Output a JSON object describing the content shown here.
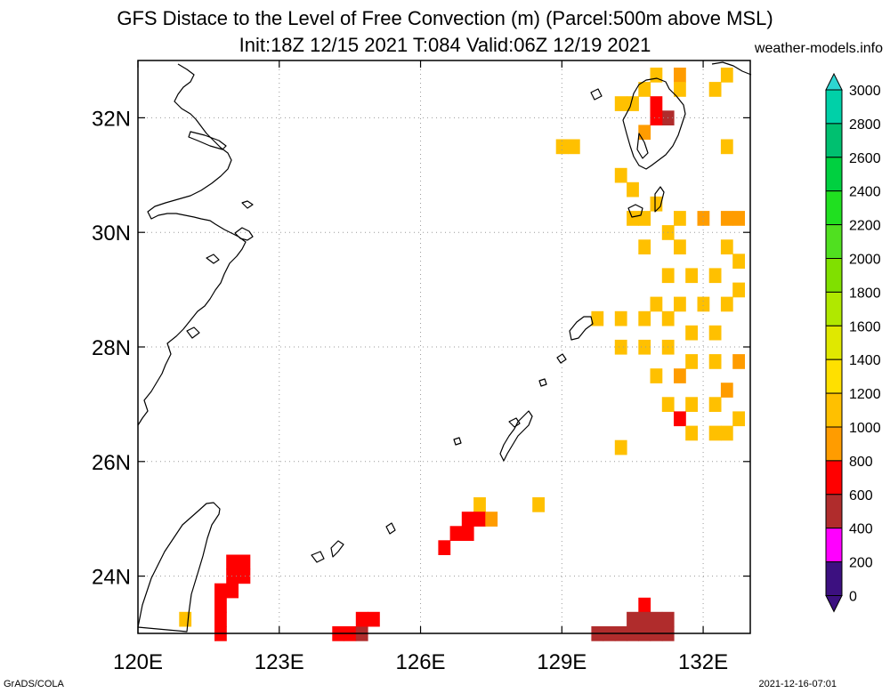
{
  "header": {
    "title_line1": "GFS Distace to the Level of Free Convection (m) (Parcel:500m above MSL)",
    "title_line2": "Init:18Z 12/15 2021 T:084 Valid:06Z 12/19 2021",
    "site": "weather-models.info"
  },
  "footer": {
    "left": "GrADS/COLA",
    "right": "2021-12-16-07:01"
  },
  "map": {
    "lon_range": [
      120,
      133
    ],
    "lat_range": [
      23,
      33
    ],
    "lon_ticks": [
      {
        "value": 120,
        "label": "120E"
      },
      {
        "value": 123,
        "label": "123E"
      },
      {
        "value": 126,
        "label": "126E"
      },
      {
        "value": 129,
        "label": "129E"
      },
      {
        "value": 132,
        "label": "132E"
      }
    ],
    "lat_ticks": [
      {
        "value": 24,
        "label": "24N"
      },
      {
        "value": 26,
        "label": "26N"
      },
      {
        "value": 28,
        "label": "28N"
      },
      {
        "value": 30,
        "label": "30N"
      },
      {
        "value": 32,
        "label": "32N"
      }
    ],
    "grid": true,
    "cells": [
      {
        "lon": 131.5,
        "lat": 32.75,
        "v": 700
      },
      {
        "lon": 131.0,
        "lat": 32.75,
        "v": 900
      },
      {
        "lon": 131.5,
        "lat": 32.5,
        "v": 900
      },
      {
        "lon": 132.25,
        "lat": 32.5,
        "v": 900
      },
      {
        "lon": 132.5,
        "lat": 32.75,
        "v": 900
      },
      {
        "lon": 130.75,
        "lat": 32.5,
        "v": 900
      },
      {
        "lon": 130.5,
        "lat": 32.25,
        "v": 900
      },
      {
        "lon": 131.0,
        "lat": 32.25,
        "v": 500
      },
      {
        "lon": 131.25,
        "lat": 32.0,
        "v": 400
      },
      {
        "lon": 130.75,
        "lat": 31.75,
        "v": 700
      },
      {
        "lon": 131.0,
        "lat": 32.0,
        "v": 500
      },
      {
        "lon": 130.25,
        "lat": 32.25,
        "v": 900
      },
      {
        "lon": 129.0,
        "lat": 31.5,
        "v": 900
      },
      {
        "lon": 129.25,
        "lat": 31.5,
        "v": 900
      },
      {
        "lon": 132.5,
        "lat": 31.5,
        "v": 900
      },
      {
        "lon": 130.25,
        "lat": 31.0,
        "v": 900
      },
      {
        "lon": 130.5,
        "lat": 30.75,
        "v": 900
      },
      {
        "lon": 130.5,
        "lat": 30.25,
        "v": 900
      },
      {
        "lon": 130.75,
        "lat": 30.25,
        "v": 900
      },
      {
        "lon": 131.0,
        "lat": 30.5,
        "v": 900
      },
      {
        "lon": 131.5,
        "lat": 30.25,
        "v": 900
      },
      {
        "lon": 132.0,
        "lat": 30.25,
        "v": 800
      },
      {
        "lon": 132.5,
        "lat": 30.25,
        "v": 800
      },
      {
        "lon": 132.75,
        "lat": 30.25,
        "v": 800
      },
      {
        "lon": 130.75,
        "lat": 29.75,
        "v": 900
      },
      {
        "lon": 131.25,
        "lat": 30.0,
        "v": 900
      },
      {
        "lon": 131.5,
        "lat": 29.75,
        "v": 900
      },
      {
        "lon": 132.5,
        "lat": 29.75,
        "v": 900
      },
      {
        "lon": 132.75,
        "lat": 29.5,
        "v": 900
      },
      {
        "lon": 131.25,
        "lat": 29.25,
        "v": 900
      },
      {
        "lon": 131.75,
        "lat": 29.25,
        "v": 900
      },
      {
        "lon": 132.25,
        "lat": 29.25,
        "v": 900
      },
      {
        "lon": 132.75,
        "lat": 29.0,
        "v": 900
      },
      {
        "lon": 131.0,
        "lat": 28.75,
        "v": 900
      },
      {
        "lon": 131.5,
        "lat": 28.75,
        "v": 900
      },
      {
        "lon": 132.0,
        "lat": 28.75,
        "v": 900
      },
      {
        "lon": 132.5,
        "lat": 28.75,
        "v": 900
      },
      {
        "lon": 129.75,
        "lat": 28.5,
        "v": 900
      },
      {
        "lon": 130.25,
        "lat": 28.5,
        "v": 900
      },
      {
        "lon": 130.75,
        "lat": 28.5,
        "v": 900
      },
      {
        "lon": 131.25,
        "lat": 28.5,
        "v": 900
      },
      {
        "lon": 131.75,
        "lat": 28.25,
        "v": 900
      },
      {
        "lon": 132.25,
        "lat": 28.25,
        "v": 900
      },
      {
        "lon": 130.25,
        "lat": 28.0,
        "v": 900
      },
      {
        "lon": 130.75,
        "lat": 28.0,
        "v": 900
      },
      {
        "lon": 131.25,
        "lat": 28.0,
        "v": 900
      },
      {
        "lon": 131.75,
        "lat": 27.75,
        "v": 900
      },
      {
        "lon": 132.25,
        "lat": 27.75,
        "v": 900
      },
      {
        "lon": 132.75,
        "lat": 27.75,
        "v": 800
      },
      {
        "lon": 131.0,
        "lat": 27.5,
        "v": 900
      },
      {
        "lon": 131.5,
        "lat": 27.5,
        "v": 800
      },
      {
        "lon": 132.5,
        "lat": 27.25,
        "v": 800
      },
      {
        "lon": 131.25,
        "lat": 27.0,
        "v": 900
      },
      {
        "lon": 131.75,
        "lat": 27.0,
        "v": 900
      },
      {
        "lon": 132.25,
        "lat": 27.0,
        "v": 900
      },
      {
        "lon": 131.5,
        "lat": 26.75,
        "v": 500
      },
      {
        "lon": 131.75,
        "lat": 26.5,
        "v": 900
      },
      {
        "lon": 132.25,
        "lat": 26.5,
        "v": 900
      },
      {
        "lon": 132.75,
        "lat": 26.75,
        "v": 900
      },
      {
        "lon": 132.5,
        "lat": 26.5,
        "v": 900
      },
      {
        "lon": 130.25,
        "lat": 26.25,
        "v": 900
      },
      {
        "lon": 128.5,
        "lat": 25.25,
        "v": 900
      },
      {
        "lon": 127.25,
        "lat": 25.25,
        "v": 900
      },
      {
        "lon": 127.0,
        "lat": 25.0,
        "v": 500
      },
      {
        "lon": 127.25,
        "lat": 25.0,
        "v": 500
      },
      {
        "lon": 127.5,
        "lat": 25.0,
        "v": 700
      },
      {
        "lon": 126.75,
        "lat": 24.75,
        "v": 500
      },
      {
        "lon": 127.0,
        "lat": 24.75,
        "v": 500
      },
      {
        "lon": 126.5,
        "lat": 24.5,
        "v": 500
      },
      {
        "lon": 122.25,
        "lat": 24.25,
        "v": 500
      },
      {
        "lon": 122.0,
        "lat": 24.25,
        "v": 500
      },
      {
        "lon": 122.25,
        "lat": 24.0,
        "v": 500
      },
      {
        "lon": 122.0,
        "lat": 24.0,
        "v": 500
      },
      {
        "lon": 121.75,
        "lat": 23.75,
        "v": 500
      },
      {
        "lon": 122.0,
        "lat": 23.75,
        "v": 500
      },
      {
        "lon": 121.75,
        "lat": 23.5,
        "v": 500
      },
      {
        "lon": 121.75,
        "lat": 23.25,
        "v": 500
      },
      {
        "lon": 121.75,
        "lat": 23.0,
        "v": 500
      },
      {
        "lon": 121.0,
        "lat": 23.25,
        "v": 900
      },
      {
        "lon": 124.25,
        "lat": 23.0,
        "v": 500
      },
      {
        "lon": 124.5,
        "lat": 23.0,
        "v": 500
      },
      {
        "lon": 124.75,
        "lat": 23.0,
        "v": 400
      },
      {
        "lon": 125.0,
        "lat": 23.25,
        "v": 500
      },
      {
        "lon": 124.75,
        "lat": 23.25,
        "v": 500
      },
      {
        "lon": 130.75,
        "lat": 23.5,
        "v": 500
      },
      {
        "lon": 129.75,
        "lat": 23.0,
        "v": 300
      },
      {
        "lon": 130.0,
        "lat": 23.0,
        "v": 300
      },
      {
        "lon": 130.25,
        "lat": 23.0,
        "v": 300
      },
      {
        "lon": 130.5,
        "lat": 23.25,
        "v": 300
      },
      {
        "lon": 130.75,
        "lat": 23.25,
        "v": 300
      },
      {
        "lon": 131.0,
        "lat": 23.25,
        "v": 300
      },
      {
        "lon": 131.25,
        "lat": 23.25,
        "v": 300
      },
      {
        "lon": 130.75,
        "lat": 23.0,
        "v": 300
      },
      {
        "lon": 131.0,
        "lat": 23.0,
        "v": 300
      },
      {
        "lon": 131.25,
        "lat": 23.0,
        "v": 300
      },
      {
        "lon": 130.5,
        "lat": 23.0,
        "v": 300
      }
    ]
  },
  "colorbar": {
    "levels": [
      "3000",
      "2800",
      "2600",
      "2400",
      "2200",
      "2000",
      "1800",
      "1600",
      "1400",
      "1200",
      "1000",
      "800",
      "600",
      "400",
      "200",
      "0"
    ],
    "colors": [
      "#2dd6d2",
      "#00d0a8",
      "#00c070",
      "#00d040",
      "#20e020",
      "#50e020",
      "#80e000",
      "#b0e800",
      "#e0e800",
      "#ffe000",
      "#ffc000",
      "#ff9c00",
      "#ff0000",
      "#b02c2c",
      "#ff00ff",
      "#3c1080"
    ]
  },
  "colors": {
    "coast": "#000000",
    "grid": "#9a9a9a"
  }
}
